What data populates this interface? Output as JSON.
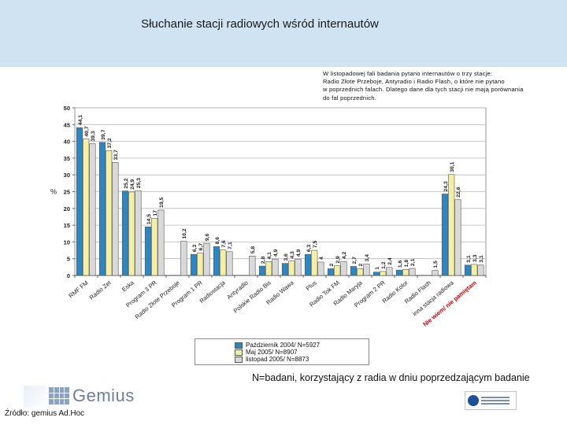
{
  "header": {
    "title": "Słuchanie stacji radiowych wśród internautów"
  },
  "note": {
    "lines": [
      "W listopadowej fali badania pytano internautów o trzy stacje:",
      "Radio Złote Przeboje, Antyradio i Radio Flash,  o które nie pytano",
      "w poprzednich falach. Dlatego dane dla tych stacji nie mają porównania",
      "do fal poprzednich."
    ]
  },
  "footnote": "N=badani, korzystający z radia w dniu poprzedzającym badanie",
  "source": "Źródło: gemius Ad.Hoc",
  "logo": {
    "text": "Gemius"
  },
  "chart_data": {
    "type": "bar",
    "title": "",
    "ylabel": "%",
    "ylim": [
      0,
      50
    ],
    "yticks": [
      0,
      5,
      10,
      15,
      20,
      25,
      30,
      35,
      40,
      45,
      50
    ],
    "grid": true,
    "legend_position": "bottom-center",
    "categories": [
      "RMF FM",
      "Radio Zet",
      "Eska",
      "Program 3 PR",
      "Radio Złote Przeboje",
      "Program 1 PR",
      "Radiostacja",
      "Antyradio",
      "Polskie Radio Bis",
      "Radio Wawa",
      "Plus",
      "Radio Tok FM",
      "Radio Maryja",
      "Program 2 PR",
      "Radio Kolor",
      "Radio Flash",
      "inna stacja radiowa",
      "Nie wiem/ nie pamiętam"
    ],
    "series": [
      {
        "name": "Październik 2004/ N=5927",
        "color": "#2e86c1",
        "values": [
          44.1,
          39.7,
          25.2,
          14.5,
          null,
          6.3,
          8.6,
          null,
          2.8,
          3.6,
          6.3,
          2.0,
          2.7,
          1.0,
          1.6,
          null,
          24.3,
          3.1
        ]
      },
      {
        "name": "Maj 2005/ N=8907",
        "color": "#f4efa6",
        "values": [
          40.7,
          37.2,
          24.9,
          17.0,
          null,
          6.7,
          7.6,
          null,
          4.1,
          4.3,
          7.5,
          2.9,
          2.0,
          1.2,
          1.8,
          null,
          30.1,
          3.3
        ]
      },
      {
        "name": "listopad 2005/ N=8873",
        "color": "#d9d9d9",
        "values": [
          39.3,
          33.7,
          25.3,
          19.5,
          10.2,
          9.6,
          7.1,
          5.8,
          4.9,
          4.9,
          4.0,
          4.2,
          3.4,
          2.4,
          2.1,
          1.5,
          22.6,
          3.1
        ]
      }
    ]
  }
}
